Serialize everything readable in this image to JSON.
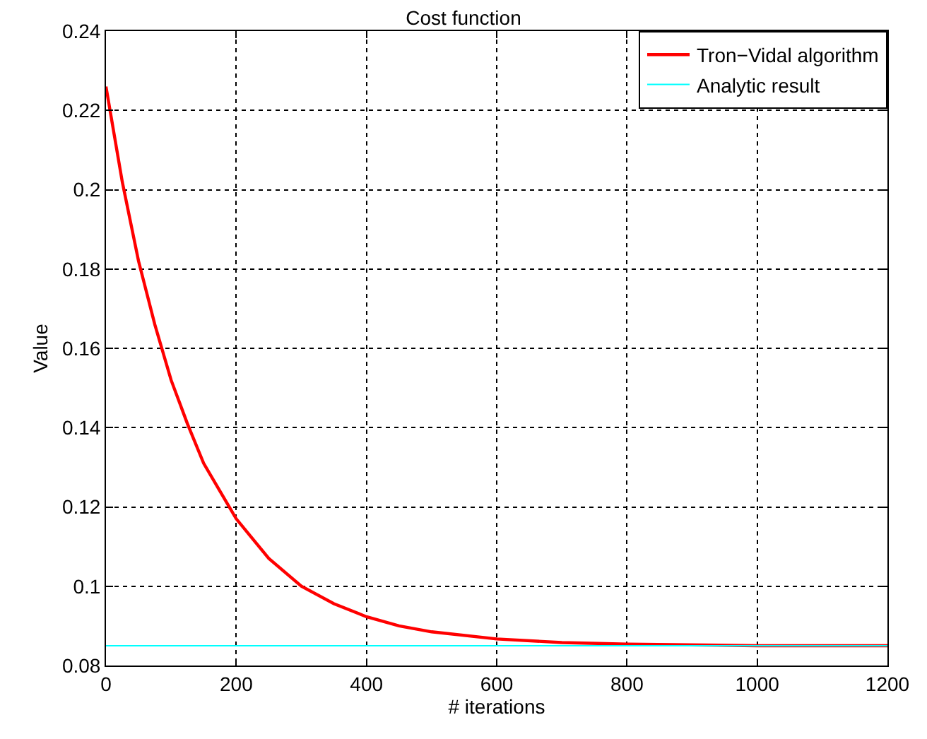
{
  "chart_data": {
    "type": "line",
    "title": "Cost function",
    "xlabel": "# iterations",
    "ylabel": "Value",
    "x": [
      0,
      25,
      50,
      75,
      100,
      125,
      150,
      175,
      200,
      250,
      300,
      350,
      400,
      450,
      500,
      600,
      700,
      800,
      1000,
      1200
    ],
    "series": [
      {
        "name": "Tron−Vidal algorithm",
        "color": "#ff0000",
        "values": [
          0.226,
          0.202,
          0.182,
          0.166,
          0.152,
          0.141,
          0.131,
          0.124,
          0.117,
          0.107,
          0.1,
          0.0956,
          0.0923,
          0.09,
          0.0885,
          0.0867,
          0.0858,
          0.0854,
          0.085,
          0.085
        ]
      },
      {
        "name": "Analytic result",
        "color": "#00ffff",
        "values": [
          0.085,
          0.085,
          0.085,
          0.085,
          0.085,
          0.085,
          0.085,
          0.085,
          0.085,
          0.085,
          0.085,
          0.085,
          0.085,
          0.085,
          0.085,
          0.085,
          0.085,
          0.085,
          0.085,
          0.085
        ]
      }
    ],
    "xlim": [
      0,
      1200
    ],
    "xticks": [
      0,
      200,
      400,
      600,
      800,
      1000,
      1200
    ],
    "ylim": [
      0.08,
      0.24
    ],
    "yticks": [
      0.08,
      0.1,
      0.12,
      0.14,
      0.16,
      0.18,
      0.2,
      0.22,
      0.24
    ],
    "grid": true,
    "legend": "top right",
    "marker": "none",
    "line_style": "solid"
  }
}
